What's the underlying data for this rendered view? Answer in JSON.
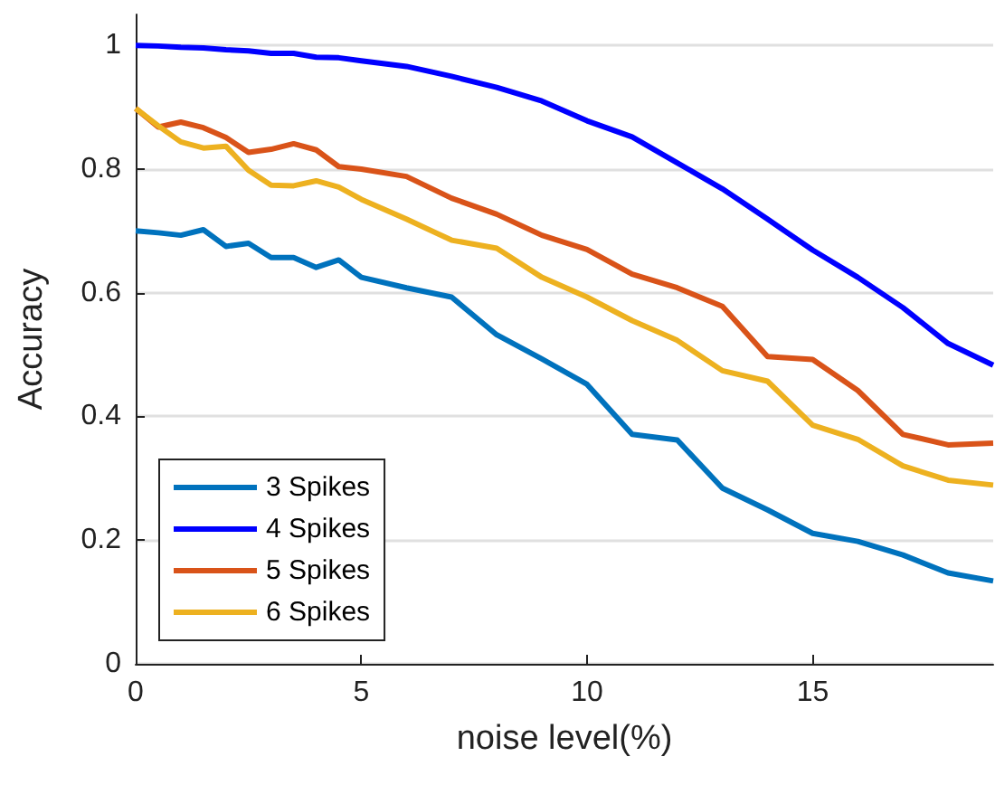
{
  "chart_data": {
    "type": "line",
    "xlabel": "noise level(%)",
    "ylabel": "Accuracy",
    "x": [
      0,
      0.5,
      1,
      1.5,
      2,
      2.5,
      3,
      3.5,
      4,
      4.5,
      5,
      6,
      7,
      8,
      9,
      10,
      11,
      12,
      13,
      14,
      15,
      16,
      17,
      18,
      19
    ],
    "series": [
      {
        "name": "3 Spikes",
        "color": "#0072bd",
        "values": [
          0.7,
          0.697,
          0.693,
          0.702,
          0.675,
          0.68,
          0.657,
          0.657,
          0.641,
          0.653,
          0.625,
          0.608,
          0.593,
          0.532,
          0.493,
          0.452,
          0.371,
          0.362,
          0.284,
          0.249,
          0.211,
          0.198,
          0.176,
          0.147,
          0.134
        ]
      },
      {
        "name": "4 Spikes",
        "color": "#0000ff",
        "values": [
          1.0,
          0.999,
          0.997,
          0.996,
          0.993,
          0.991,
          0.987,
          0.987,
          0.981,
          0.98,
          0.975,
          0.966,
          0.95,
          0.932,
          0.91,
          0.878,
          0.852,
          0.81,
          0.768,
          0.719,
          0.669,
          0.625,
          0.576,
          0.518,
          0.483
        ]
      },
      {
        "name": "5 Spikes",
        "color": "#d95319",
        "values": [
          0.898,
          0.868,
          0.876,
          0.867,
          0.851,
          0.827,
          0.832,
          0.841,
          0.831,
          0.804,
          0.8,
          0.788,
          0.753,
          0.727,
          0.693,
          0.67,
          0.63,
          0.608,
          0.578,
          0.497,
          0.492,
          0.442,
          0.371,
          0.354,
          0.357
        ]
      },
      {
        "name": "6 Spikes",
        "color": "#edb120",
        "values": [
          0.898,
          0.87,
          0.844,
          0.834,
          0.837,
          0.798,
          0.774,
          0.773,
          0.781,
          0.771,
          0.751,
          0.719,
          0.685,
          0.672,
          0.625,
          0.593,
          0.555,
          0.523,
          0.474,
          0.457,
          0.386,
          0.363,
          0.32,
          0.297,
          0.289
        ]
      }
    ],
    "xlim": [
      0,
      19
    ],
    "xticks": [
      0,
      5,
      10,
      15
    ],
    "ylim": [
      0,
      1.05
    ],
    "yticks": [
      0,
      0.2,
      0.4,
      0.6,
      0.8,
      1
    ],
    "grid": "y",
    "legend": "bottom left",
    "line_style": "solid"
  }
}
